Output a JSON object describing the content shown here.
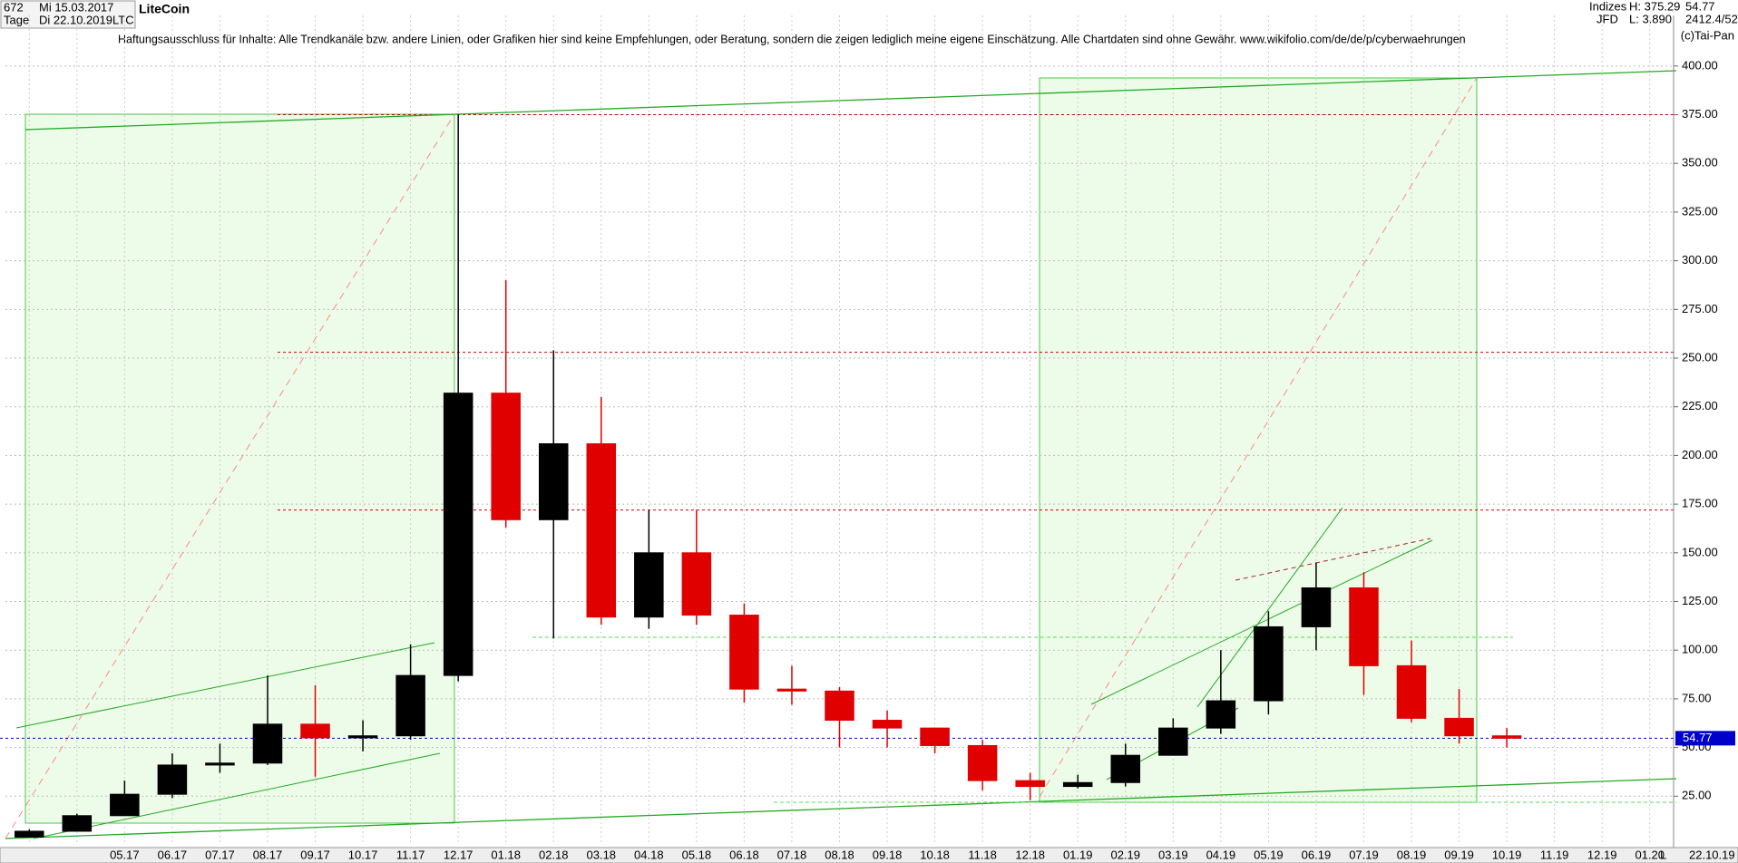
{
  "header": {
    "count": "672",
    "start": "Mi 15.03.2017",
    "period": "Tage",
    "end": "Di 22.10.2019",
    "symbol": "LTC",
    "indizes": "Indizes",
    "broker": "JFD",
    "high": "H: 375.29",
    "low": "L: 3.890",
    "last": "54.77",
    "extra": "2412.4/52",
    "copyright": "(c)Tai-Pan",
    "end_short": "22.10.19",
    "scale_mode": "L"
  },
  "chart_data": {
    "type": "candlestick",
    "title": "LiteCoin",
    "subtitle": "Haftungsausschluss für Inhalte: Alle Trendkanäle bzw. andere Linien, oder Grafiken hier sind keine Empfehlungen, oder Beratung, sondern die zeigen lediglich meine eigene Einschätzung. Alle Chartdaten sind ohne Gewähr.  www.wikifolio.com/de/de/p/cyberwaehrungen",
    "categories": [
      null,
      null,
      "05.17",
      "06.17",
      "07.17",
      "08.17",
      "09.17",
      "10.17",
      "11.17",
      "12.17",
      "01.18",
      "02.18",
      "03.18",
      "04.18",
      "05.18",
      "06.18",
      "07.18",
      "08.18",
      "09.18",
      "10.18",
      "11.18",
      "12.18",
      "01.19",
      "02.19",
      "03.19",
      "04.19",
      "05.19",
      "06.19",
      "07.19",
      "08.19",
      "09.19",
      "10.19",
      "11.19",
      "12.19",
      "01.20"
    ],
    "open": [
      4,
      7,
      15,
      26,
      41,
      42,
      62,
      55,
      56,
      87,
      232,
      167,
      206,
      117,
      150,
      118,
      80,
      79,
      64,
      60,
      51,
      33,
      30,
      32,
      46,
      60,
      74,
      112,
      132,
      92,
      65,
      56,
      null,
      null,
      null
    ],
    "high": [
      8,
      16,
      33,
      47,
      52,
      87,
      82,
      64,
      103,
      375,
      290,
      254,
      230,
      172,
      172,
      124,
      92,
      81,
      69,
      60,
      54,
      37,
      36,
      52,
      65,
      100,
      120,
      145,
      140,
      105,
      80,
      60,
      null,
      null,
      null
    ],
    "low": [
      4,
      7,
      15,
      24,
      37,
      41,
      35,
      48,
      54,
      84,
      163,
      106,
      113,
      111,
      113,
      73,
      72,
      50,
      50,
      47,
      28,
      23,
      29,
      30,
      46,
      57,
      67,
      100,
      77,
      63,
      52,
      50,
      null,
      null,
      null
    ],
    "close": [
      7,
      15,
      26,
      41,
      42,
      62,
      55,
      56,
      87,
      232,
      167,
      206,
      117,
      150,
      118,
      80,
      79,
      64,
      60,
      51,
      33,
      30,
      32,
      46,
      60,
      74,
      112,
      132,
      92,
      65,
      56,
      54.77,
      null,
      null,
      null
    ],
    "up_color": "#000000",
    "down_color": "#e00000",
    "ylim": [
      0,
      426
    ],
    "yticks": [
      {
        "value": 25,
        "label": "25.00"
      },
      {
        "value": 50,
        "label": "50.00"
      },
      {
        "value": 75,
        "label": "75.00"
      },
      {
        "value": 100,
        "label": "100.00"
      },
      {
        "value": 125,
        "label": "125.00"
      },
      {
        "value": 150,
        "label": "150.00"
      },
      {
        "value": 175,
        "label": "175.00"
      },
      {
        "value": 200,
        "label": "200.00"
      },
      {
        "value": 225,
        "label": "225.00"
      },
      {
        "value": 250,
        "label": "250.00"
      },
      {
        "value": 275,
        "label": "275.00"
      },
      {
        "value": 300,
        "label": "300.00"
      },
      {
        "value": 325,
        "label": "325.00"
      },
      {
        "value": 350,
        "label": "350.00"
      },
      {
        "value": 375,
        "label": "375.00"
      },
      {
        "value": 400,
        "label": "400.00"
      }
    ],
    "grid": true,
    "hlines": [
      {
        "value": 375,
        "color": "#d00000"
      },
      {
        "value": 253,
        "color": "#d00000"
      },
      {
        "value": 172,
        "color": "#d00000"
      }
    ],
    "last_price": 54.77,
    "last_color": "#0000cc"
  }
}
